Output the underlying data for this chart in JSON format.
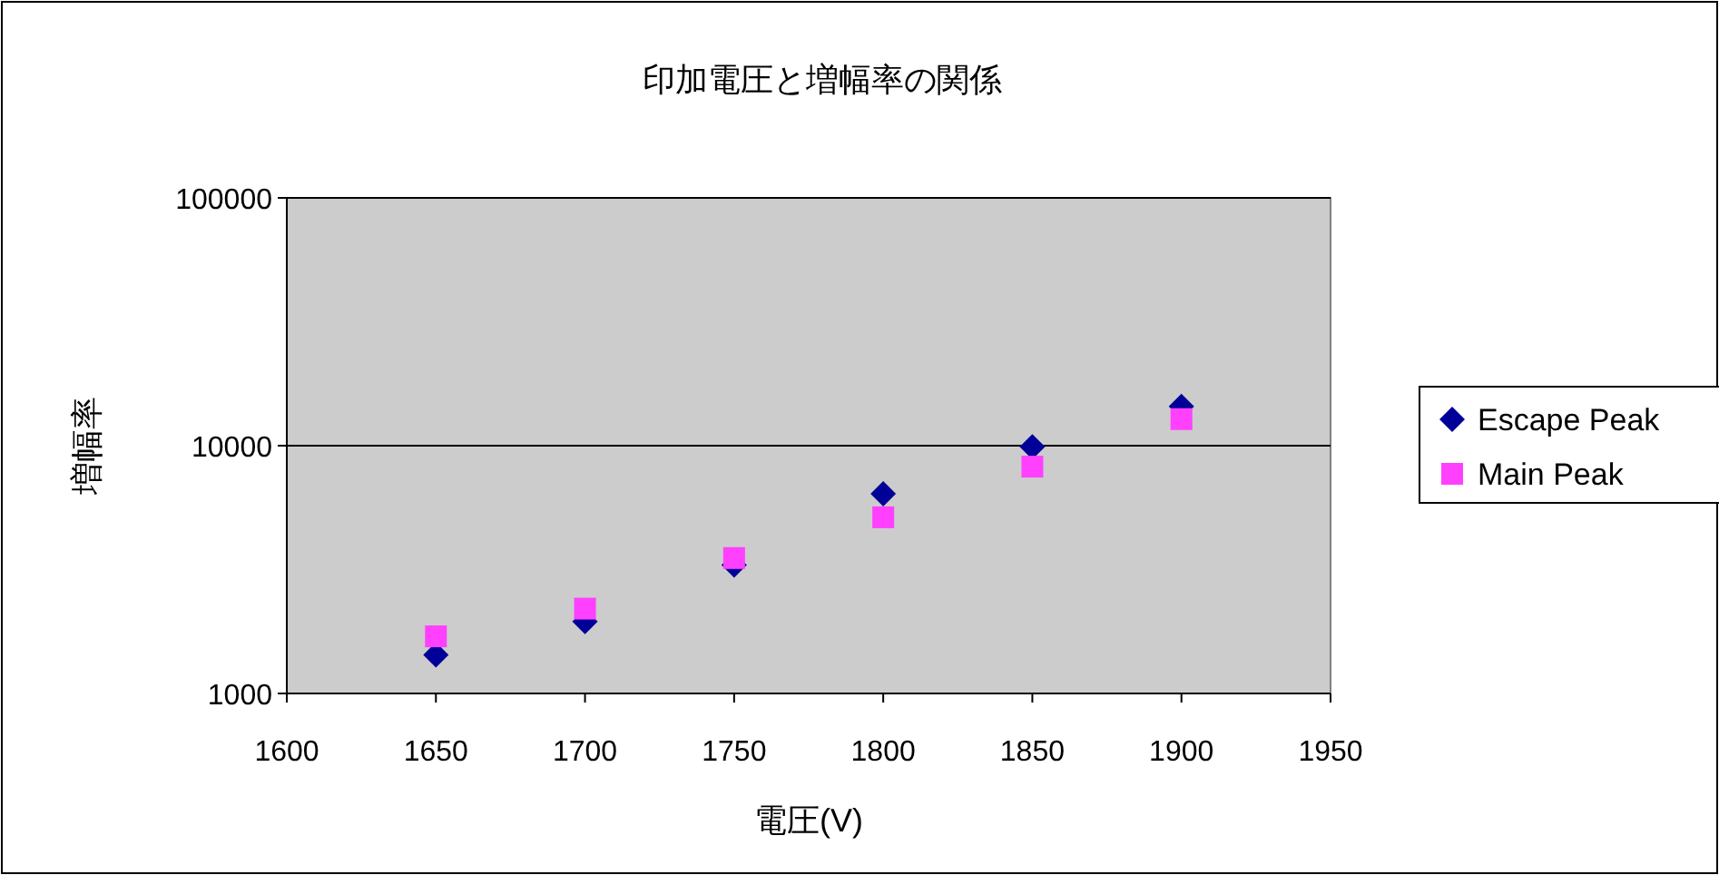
{
  "chart_data": {
    "type": "scatter",
    "title": "印加電圧と増幅率の関係",
    "xlabel": "電圧(V)",
    "ylabel": "増幅率",
    "log": "y",
    "xlim": [
      1600,
      1950
    ],
    "xticks": [
      1600,
      1650,
      1700,
      1750,
      1800,
      1850,
      1900,
      1950
    ],
    "ylim": [
      1000,
      100000
    ],
    "yticks": [
      1000,
      10000,
      100000
    ],
    "grid": "y",
    "legend": "right",
    "x": [
      1650,
      1700,
      1750,
      1800,
      1850,
      1900
    ],
    "series": [
      {
        "name": "Escape Peak",
        "color": "#000099",
        "marker": "diamond",
        "values": [
          1430,
          1950,
          3300,
          6400,
          9900,
          14400
        ]
      },
      {
        "name": "Main Peak",
        "color": "#ff40ff",
        "marker": "square",
        "values": [
          1700,
          2200,
          3520,
          5140,
          8230,
          12800
        ]
      }
    ]
  }
}
